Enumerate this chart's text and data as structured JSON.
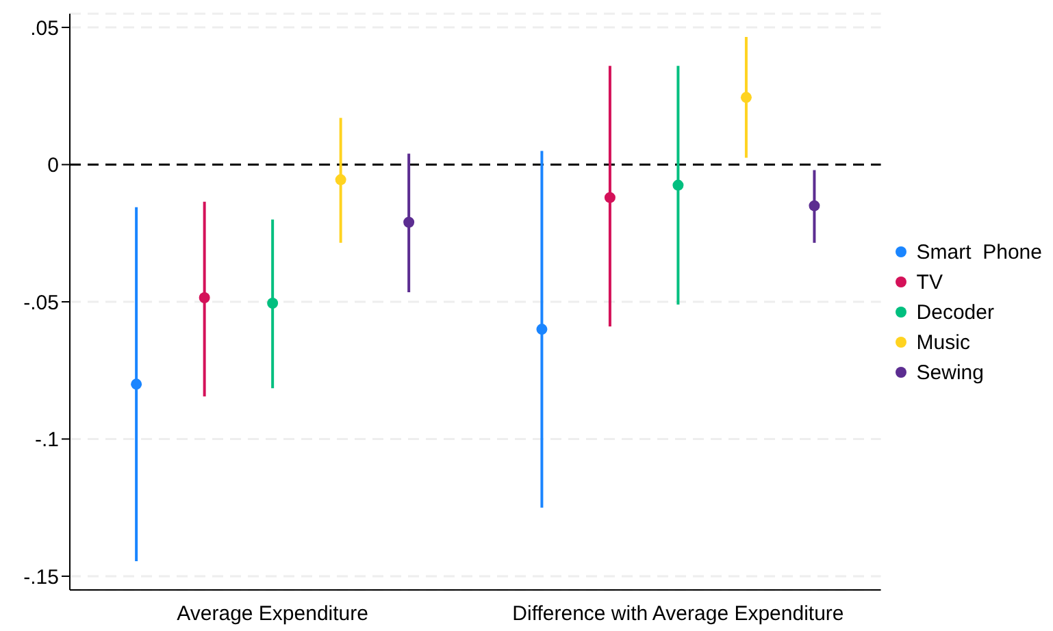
{
  "chart_data": {
    "type": "scatter",
    "categories": [
      "Average Expenditure",
      "Difference with Average Expenditure"
    ],
    "series": [
      {
        "name": "Smart  Phone",
        "color": "#1a85ff",
        "values": [
          -0.08,
          -0.06
        ],
        "errors": [
          [
            -0.1445,
            -0.0155
          ],
          [
            -0.125,
            0.005
          ]
        ]
      },
      {
        "name": "TV",
        "color": "#d41159",
        "values": [
          -0.0485,
          -0.012
        ],
        "errors": [
          [
            -0.0845,
            -0.0135
          ],
          [
            -0.059,
            0.036
          ]
        ]
      },
      {
        "name": "Decoder",
        "color": "#00bf7f",
        "values": [
          -0.0505,
          -0.0075
        ],
        "errors": [
          [
            -0.0815,
            -0.02
          ],
          [
            -0.051,
            0.036
          ]
        ]
      },
      {
        "name": "Music",
        "color": "#ffd320",
        "values": [
          -0.0055,
          0.0245
        ],
        "errors": [
          [
            -0.0285,
            0.017
          ],
          [
            0.0025,
            0.0465
          ]
        ]
      },
      {
        "name": "Sewing",
        "color": "#5c2d91",
        "values": [
          -0.021,
          -0.015
        ],
        "errors": [
          [
            -0.0465,
            0.004
          ],
          [
            -0.0285,
            -0.002
          ]
        ]
      }
    ],
    "ylim": [
      -0.155,
      0.055
    ],
    "yticks": [
      {
        "value": -0.15,
        "label": "-.15"
      },
      {
        "value": -0.1,
        "label": "-.1"
      },
      {
        "value": -0.05,
        "label": "-.05"
      },
      {
        "value": 0,
        "label": "0"
      },
      {
        "value": 0.05,
        "label": ".05"
      }
    ],
    "grid": "y",
    "legend": "right",
    "marker": "circle",
    "ref_lines": [
      {
        "axis": "y",
        "value": 0,
        "color": "#000000",
        "line_style": "dashed"
      }
    ]
  }
}
